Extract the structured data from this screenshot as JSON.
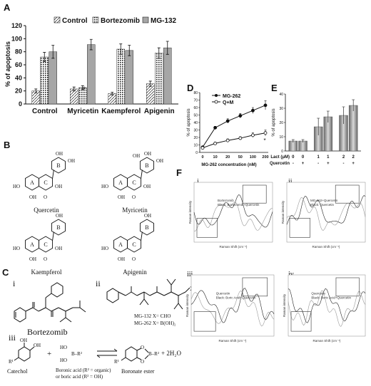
{
  "panels": {
    "a": "A",
    "b": "B",
    "c": "C",
    "d": "D",
    "e": "E",
    "f": "F",
    "ci": "i",
    "cii": "ii",
    "ciii": "iii",
    "fi": "i",
    "fii": "ii",
    "fiii": "iii",
    "fiv": "iv"
  },
  "chart_data": [
    {
      "panel": "A",
      "type": "bar",
      "categories": [
        "Control",
        "Myricetin",
        "Kaempferol",
        "Apigenin"
      ],
      "series": [
        {
          "name": "Control",
          "values": [
            20,
            23,
            16,
            31
          ],
          "errors": [
            3,
            3,
            2,
            4
          ]
        },
        {
          "name": "Bortezomib",
          "values": [
            72,
            25,
            84,
            78
          ],
          "errors": [
            7,
            3,
            8,
            8
          ]
        },
        {
          "name": "MG-132",
          "values": [
            80,
            91,
            82,
            86
          ],
          "errors": [
            10,
            8,
            8,
            10
          ]
        }
      ],
      "ylabel": "% of apoptosis",
      "ylim": [
        0,
        120
      ],
      "yticks": [
        "0",
        "20",
        "40",
        "60",
        "80",
        "100",
        "120"
      ],
      "annotation": "*",
      "legend": "top",
      "colors": {
        "control": "#ffffff",
        "bortezomib": "#d9d9d9",
        "mg132": "#a6a6a6"
      }
    },
    {
      "panel": "D",
      "type": "line",
      "x": [
        0,
        10,
        20,
        50,
        100,
        200
      ],
      "xticks": [
        "0",
        "10",
        "20",
        "50",
        "100",
        "200"
      ],
      "series": [
        {
          "name": "MG-262",
          "values": [
            7,
            33,
            42,
            49,
            56,
            63
          ],
          "errors": [
            1,
            2,
            3,
            3,
            4,
            6
          ]
        },
        {
          "name": "Q+M",
          "values": [
            6,
            12,
            16,
            19,
            23,
            26
          ],
          "errors": [
            1,
            2,
            2,
            2,
            3,
            4
          ]
        }
      ],
      "xlabel": "MG-262 concentration (nM)",
      "ylabel": "% of apoptosis",
      "ylim": [
        0,
        80
      ],
      "yticks": [
        "0",
        "10",
        "20",
        "30",
        "40",
        "50",
        "60",
        "70",
        "80"
      ],
      "annotation": "*",
      "legend": "top-left"
    },
    {
      "panel": "E",
      "type": "bar",
      "categories": [
        "0",
        "0",
        "1",
        "1",
        "2",
        "2"
      ],
      "values": [
        7,
        7,
        17,
        24,
        25,
        32
      ],
      "errors": [
        1,
        1,
        6,
        4,
        6,
        4
      ],
      "ylabel": "% of apoptosis",
      "ylim": [
        0,
        40
      ],
      "yticks": [
        "0",
        "10",
        "20",
        "30",
        "40"
      ],
      "row1_label": "Lact (μM)",
      "row2_label": "Quercetin",
      "row2_values": [
        "-",
        "+",
        "-",
        "+",
        "-",
        "+"
      ]
    }
  ],
  "structures": {
    "b1": "Quercetin",
    "b2": "Myricetin",
    "b3": "Kaempferol",
    "b4": "Apigenin",
    "ring_a": "A",
    "ring_b": "B",
    "ring_c": "C",
    "ho": "HO",
    "oh": "OH",
    "o": "O",
    "bortezomib": "Bortezomib",
    "mg132": "MG-132  X= CHO",
    "mg262": "MG-262  X= B(OH)₂",
    "x": "X"
  },
  "reaction": {
    "catechol": "Catechol",
    "boronic_acid": "Boronic acid (R² = organic)",
    "boric_acid": "or boric acid (R² = OH)",
    "boronate": "Boronate ester",
    "water": "+ 2H₂O",
    "plus": "+",
    "r1": "R¹",
    "r2": "B–R²",
    "ho_b": "HO",
    "ho_b2": "HO"
  },
  "raman": {
    "xlabel": "Raman Shift (cm⁻¹)",
    "ylabel": "Raman intensity",
    "fi_legend": [
      "Bortezomib",
      "Black: Bortezomib+Quercetin"
    ],
    "fii_legend": [
      "MG-262+Quercetin",
      "Black: Quercetin"
    ],
    "fiii_legend": [
      "Quercetin",
      "Black: Boric Acid+Quercetin"
    ],
    "fiv_legend": [
      "Quercetin",
      "Black: Boric Acid+Quercetin"
    ]
  }
}
